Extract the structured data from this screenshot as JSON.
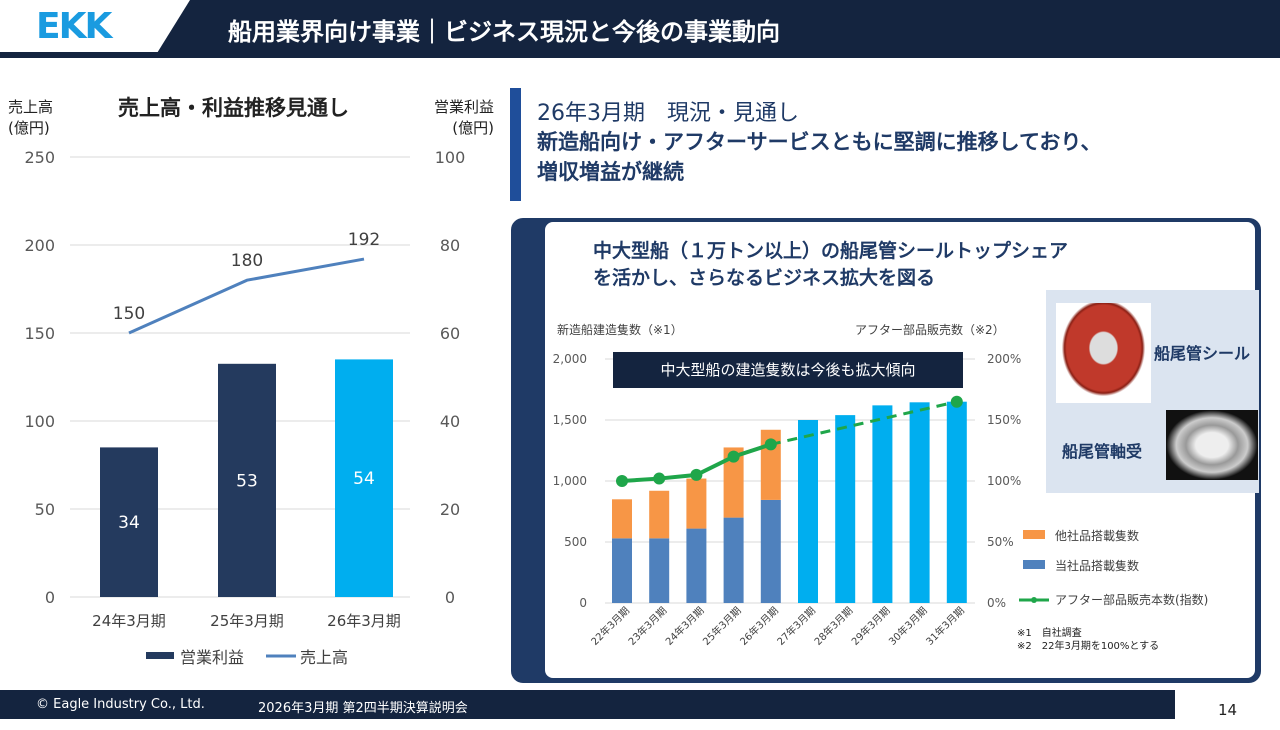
{
  "header": {
    "logo": "EKK",
    "title": "船用業界向け事業｜ビジネス現況と今後の事業動向"
  },
  "left": {
    "title": "売上高・利益推移見通し",
    "left_axis_label": [
      "売上高",
      "(億円)"
    ],
    "right_axis_label": [
      "営業利益",
      "(億円)"
    ],
    "legend": {
      "profit": "営業利益",
      "sales": "売上高"
    }
  },
  "status": {
    "period": "26年3月期　現況・見通し",
    "headline": [
      "新造船向け・アフターサービスともに堅調に推移しており、",
      "増収増益が継続"
    ]
  },
  "panel": {
    "heading": [
      "中大型船（１万トン以上）の船尾管シールトップシェア",
      "を活かし、さらなるビジネス拡大を図る"
    ],
    "callout": "中大型船の建造隻数は今後も拡大傾向",
    "photo1": "船尾管シール",
    "photo2": "船尾管軸受",
    "notes": [
      "※1　自社調査",
      "※2　22年3月期を100%とする"
    ]
  },
  "footer": {
    "copyright": "© Eagle Industry Co., Ltd.",
    "event": "2026年3月期 第2四半期決算説明会",
    "page": "14"
  },
  "chart_data": [
    {
      "type": "bar+line",
      "categories": [
        "24年3月期",
        "25年3月期",
        "26年3月期"
      ],
      "series": [
        {
          "name": "営業利益",
          "axis": "right",
          "values": [
            34,
            53,
            54
          ],
          "colors": [
            "#243a5e",
            "#243a5e",
            "#00aeef"
          ]
        },
        {
          "name": "売上高",
          "axis": "left",
          "type": "line",
          "values": [
            150,
            180,
            192
          ],
          "color": "#4f81bd"
        }
      ],
      "left_ticks": [
        "0",
        "50",
        "100",
        "150",
        "200",
        "250"
      ],
      "right_ticks": [
        "0",
        "20",
        "40",
        "60",
        "80",
        "100"
      ],
      "ylim_left": [
        0,
        250
      ],
      "ylim_right": [
        0,
        100
      ],
      "grid": true,
      "legend": "bottom"
    },
    {
      "type": "stacked-bar+line",
      "categories": [
        "22年3月期",
        "23年3月期",
        "24年3月期",
        "25年3月期",
        "26年3月期",
        "27年3月期",
        "28年3月期",
        "29年3月期",
        "30年3月期",
        "31年3月期"
      ],
      "left_label": "新造船建造隻数（※1）",
      "right_label": "アフター部品販売数（※2）",
      "series": [
        {
          "name": "当社品搭載隻数",
          "values": [
            530,
            530,
            610,
            700,
            845,
            null,
            null,
            null,
            null,
            null
          ],
          "color": "#4f81bd"
        },
        {
          "name": "他社品搭載隻数",
          "values": [
            320,
            390,
            410,
            575,
            575,
            null,
            null,
            null,
            null,
            null
          ],
          "color": "#f79646"
        },
        {
          "name": "",
          "values": [
            null,
            null,
            null,
            null,
            null,
            1500,
            1540,
            1620,
            1645,
            1650
          ],
          "color": "#00aeef"
        },
        {
          "name": "アフター部品販売本数(指数)",
          "axis": "right",
          "type": "line",
          "values": [
            100,
            102,
            105,
            120,
            130,
            null,
            null,
            null,
            null,
            165
          ],
          "dashed_from": "26年3月期",
          "color": "#1fa64a"
        }
      ],
      "left_ticks": [
        "0",
        "500",
        "1,000",
        "1,500",
        "2,000"
      ],
      "right_ticks": [
        "0%",
        "50%",
        "100%",
        "150%",
        "200%"
      ],
      "ylim_left": [
        0,
        2000
      ],
      "ylim_right": [
        0,
        200
      ],
      "grid": true,
      "legend": "right"
    }
  ]
}
